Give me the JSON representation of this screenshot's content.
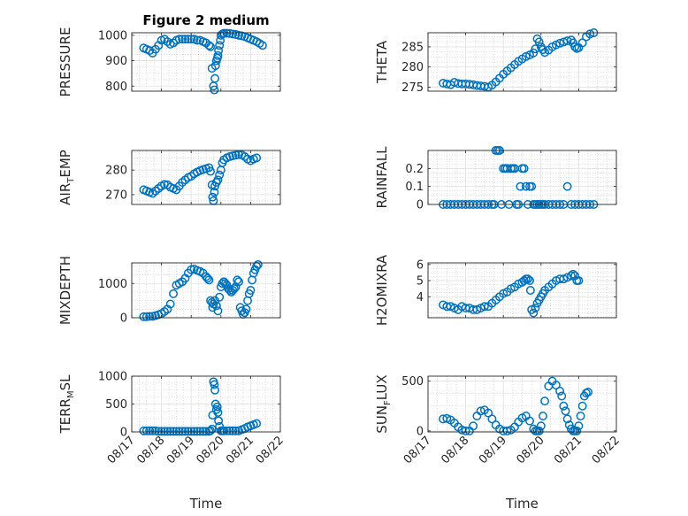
{
  "figure_title": "Figure 2 medium",
  "colors": {
    "marker": "#0072BD",
    "axis": "#262626",
    "grid": "#c8c8c8",
    "background": "#ffffff"
  },
  "chart_data": [
    {
      "type": "scatter",
      "id": "pressure",
      "title": "Figure 2 medium",
      "ylabel": {
        "main": "PRESSURE"
      },
      "ylim": [
        780,
        1010
      ],
      "yticks": [
        800,
        900,
        1000
      ],
      "xlim": [
        17,
        22
      ],
      "xticks": [
        17,
        18,
        19,
        20,
        21,
        22
      ],
      "show_x_tick_labels": false,
      "grid": true,
      "x": [
        17.4,
        17.5,
        17.6,
        17.7,
        17.8,
        17.9,
        18.0,
        18.1,
        18.2,
        18.3,
        18.4,
        18.5,
        18.6,
        18.7,
        18.8,
        18.9,
        19.0,
        19.1,
        19.2,
        19.3,
        19.4,
        19.5,
        19.6,
        19.65,
        19.7,
        19.75,
        19.78,
        19.8,
        19.82,
        19.85,
        19.88,
        19.9,
        19.92,
        19.95,
        19.98,
        20.0,
        20.05,
        20.1,
        20.2,
        20.3,
        20.4,
        20.5,
        20.6,
        20.7,
        20.8,
        20.9,
        21.0,
        21.1,
        21.2,
        21.3,
        21.4
      ],
      "y": [
        950,
        945,
        940,
        930,
        945,
        960,
        980,
        985,
        975,
        965,
        970,
        980,
        985,
        985,
        985,
        985,
        985,
        985,
        980,
        980,
        975,
        970,
        960,
        955,
        870,
        800,
        785,
        830,
        880,
        900,
        910,
        920,
        940,
        960,
        980,
        1000,
        1005,
        1008,
        1008,
        1007,
        1005,
        1003,
        1000,
        998,
        995,
        990,
        985,
        980,
        975,
        968,
        960
      ]
    },
    {
      "type": "scatter",
      "id": "theta",
      "ylabel": {
        "main": "THETA"
      },
      "ylim": [
        274,
        288.5
      ],
      "yticks": [
        275,
        280,
        285
      ],
      "xlim": [
        17,
        22
      ],
      "xticks": [
        17,
        18,
        19,
        20,
        21,
        22
      ],
      "show_x_tick_labels": false,
      "grid": true,
      "x": [
        17.4,
        17.5,
        17.6,
        17.7,
        17.8,
        17.9,
        18.0,
        18.1,
        18.2,
        18.3,
        18.4,
        18.5,
        18.6,
        18.7,
        18.8,
        18.9,
        19.0,
        19.1,
        19.2,
        19.3,
        19.4,
        19.5,
        19.6,
        19.7,
        19.8,
        19.85,
        19.9,
        19.95,
        20.0,
        20.05,
        20.1,
        20.2,
        20.3,
        20.4,
        20.5,
        20.6,
        20.7,
        20.8,
        20.85,
        20.9,
        20.95,
        21.0,
        21.1,
        21.2,
        21.3,
        21.4
      ],
      "y": [
        276,
        275.8,
        275.6,
        276.2,
        275.9,
        275.8,
        275.8,
        275.7,
        275.6,
        275.4,
        275.3,
        275.2,
        275.0,
        275.5,
        276.3,
        277.2,
        278.2,
        279.0,
        279.8,
        280.6,
        281.4,
        282.0,
        282.6,
        283.0,
        283.5,
        284.5,
        287.0,
        286.2,
        285.0,
        284.3,
        283.6,
        284.2,
        285.0,
        285.5,
        285.9,
        286.2,
        286.5,
        286.7,
        286.0,
        285.0,
        284.6,
        284.8,
        286.0,
        287.5,
        288.2,
        288.5
      ]
    },
    {
      "type": "scatter",
      "id": "air_temp",
      "ylabel": {
        "main": "AIR",
        "sub": "T",
        "rest": "EMP"
      },
      "ylim": [
        266,
        288
      ],
      "yticks": [
        270,
        280
      ],
      "xlim": [
        17,
        22
      ],
      "xticks": [
        17,
        18,
        19,
        20,
        21,
        22
      ],
      "show_x_tick_labels": false,
      "grid": true,
      "x": [
        17.4,
        17.5,
        17.6,
        17.7,
        17.8,
        17.9,
        18.0,
        18.1,
        18.2,
        18.3,
        18.4,
        18.5,
        18.6,
        18.7,
        18.8,
        18.9,
        19.0,
        19.1,
        19.2,
        19.3,
        19.4,
        19.5,
        19.6,
        19.65,
        19.7,
        19.72,
        19.75,
        19.78,
        19.8,
        19.85,
        19.9,
        19.95,
        20.0,
        20.05,
        20.1,
        20.2,
        20.3,
        20.4,
        20.5,
        20.6,
        20.7,
        20.8,
        20.9,
        21.0,
        21.1,
        21.2
      ],
      "y": [
        272,
        271.5,
        271,
        270.5,
        271.5,
        272.5,
        273.5,
        274.2,
        274,
        273,
        272.5,
        272,
        273.5,
        275,
        276,
        277,
        277.5,
        278.5,
        279.2,
        279.8,
        280.2,
        280.6,
        281,
        279.5,
        274,
        269,
        267.5,
        271,
        273.5,
        275,
        276,
        278,
        280,
        283,
        284.2,
        285,
        285.5,
        285.8,
        286.1,
        286.3,
        286.2,
        285.5,
        284.5,
        283.8,
        284.5,
        285.0
      ]
    },
    {
      "type": "scatter",
      "id": "rainfall",
      "ylabel": {
        "main": "RAINFALL"
      },
      "ylim": [
        0,
        0.3
      ],
      "yticks": [
        0,
        0.1,
        0.2
      ],
      "xlim": [
        17,
        22
      ],
      "xticks": [
        17,
        18,
        19,
        20,
        21,
        22
      ],
      "show_x_tick_labels": false,
      "grid": true,
      "x": [
        17.4,
        17.5,
        17.6,
        17.7,
        17.8,
        17.9,
        18.0,
        18.1,
        18.2,
        18.3,
        18.4,
        18.5,
        18.6,
        18.7,
        18.75,
        18.8,
        18.85,
        18.9,
        18.95,
        19.0,
        19.05,
        19.1,
        19.15,
        19.2,
        19.25,
        19.3,
        19.35,
        19.4,
        19.45,
        19.5,
        19.55,
        19.6,
        19.65,
        19.7,
        19.75,
        19.8,
        19.85,
        19.9,
        19.95,
        20.0,
        20.05,
        20.1,
        20.2,
        20.3,
        20.4,
        20.5,
        20.6,
        20.7,
        20.8,
        20.9,
        21.0,
        21.1,
        21.2,
        21.3,
        21.4
      ],
      "y": [
        0,
        0,
        0,
        0,
        0,
        0,
        0,
        0,
        0,
        0,
        0,
        0,
        0,
        0,
        0,
        0.3,
        0.3,
        0.3,
        0,
        0.2,
        0.2,
        0.2,
        0,
        0.2,
        0.2,
        0.2,
        0,
        0,
        0.1,
        0.2,
        0.2,
        0.1,
        0,
        0.1,
        0.1,
        0,
        0,
        0,
        0,
        0,
        0,
        0,
        0,
        0,
        0,
        0,
        0,
        0.1,
        0,
        0,
        0,
        0,
        0,
        0,
        0
      ]
    },
    {
      "type": "scatter",
      "id": "mixdepth",
      "ylabel": {
        "main": "MIXDEPTH"
      },
      "ylim": [
        0,
        1600
      ],
      "yticks": [
        0,
        1000
      ],
      "xlim": [
        17,
        22
      ],
      "xticks": [
        17,
        18,
        19,
        20,
        21,
        22
      ],
      "show_x_tick_labels": false,
      "grid": true,
      "x": [
        17.4,
        17.5,
        17.6,
        17.7,
        17.8,
        17.9,
        18.0,
        18.1,
        18.2,
        18.3,
        18.4,
        18.5,
        18.6,
        18.7,
        18.8,
        18.9,
        19.0,
        19.1,
        19.2,
        19.3,
        19.4,
        19.5,
        19.55,
        19.6,
        19.65,
        19.7,
        19.72,
        19.75,
        19.8,
        19.85,
        19.9,
        19.95,
        20.0,
        20.05,
        20.1,
        20.15,
        20.2,
        20.25,
        20.3,
        20.35,
        20.4,
        20.45,
        20.5,
        20.55,
        20.6,
        20.65,
        20.7,
        20.75,
        20.8,
        20.85,
        20.9,
        20.95,
        21.0,
        21.05,
        21.1,
        21.15,
        21.2,
        21.25
      ],
      "y": [
        30,
        30,
        40,
        40,
        60,
        90,
        120,
        180,
        250,
        400,
        700,
        950,
        1000,
        1050,
        1150,
        1300,
        1400,
        1420,
        1380,
        1350,
        1300,
        1200,
        1150,
        1100,
        500,
        450,
        300,
        400,
        500,
        350,
        200,
        600,
        900,
        1000,
        1050,
        1000,
        950,
        850,
        800,
        750,
        800,
        850,
        900,
        1100,
        1050,
        300,
        200,
        100,
        150,
        250,
        500,
        700,
        800,
        1100,
        1300,
        1400,
        1500,
        1550
      ]
    },
    {
      "type": "scatter",
      "id": "h2omixra",
      "ylabel": {
        "main": "H2OMIXRA"
      },
      "ylim": [
        2.7,
        6.1
      ],
      "yticks": [
        4,
        5,
        6
      ],
      "xlim": [
        17,
        22
      ],
      "xticks": [
        17,
        18,
        19,
        20,
        21,
        22
      ],
      "show_x_tick_labels": false,
      "grid": true,
      "x": [
        17.4,
        17.5,
        17.6,
        17.7,
        17.8,
        17.9,
        18.0,
        18.1,
        18.2,
        18.3,
        18.4,
        18.5,
        18.6,
        18.7,
        18.8,
        18.9,
        19.0,
        19.1,
        19.2,
        19.3,
        19.4,
        19.5,
        19.55,
        19.6,
        19.65,
        19.7,
        19.72,
        19.75,
        19.8,
        19.85,
        19.9,
        19.95,
        20.0,
        20.05,
        20.1,
        20.2,
        20.3,
        20.4,
        20.5,
        20.6,
        20.7,
        20.8,
        20.85,
        20.9,
        20.95,
        21.0
      ],
      "y": [
        3.5,
        3.4,
        3.4,
        3.3,
        3.2,
        3.4,
        3.3,
        3.3,
        3.2,
        3.2,
        3.3,
        3.4,
        3.4,
        3.6,
        3.8,
        4.0,
        4.2,
        4.3,
        4.5,
        4.6,
        4.8,
        4.9,
        5.0,
        5.1,
        5.1,
        5.0,
        4.4,
        3.2,
        3.0,
        3.3,
        3.6,
        3.8,
        4.0,
        4.2,
        4.4,
        4.6,
        4.8,
        5.0,
        5.1,
        5.1,
        5.2,
        5.3,
        5.4,
        5.3,
        5.0,
        5.0
      ]
    },
    {
      "type": "scatter",
      "id": "terr_msl",
      "ylabel": {
        "main": "TERR",
        "sub": "M",
        "rest": "SL"
      },
      "ylim": [
        0,
        1000
      ],
      "yticks": [
        0,
        500,
        1000
      ],
      "xlim": [
        17,
        22
      ],
      "xticks": [
        17,
        18,
        19,
        20,
        21,
        22
      ],
      "xticklabels": [
        "08/17",
        "08/18",
        "08/19",
        "08/20",
        "08/21",
        "08/22"
      ],
      "xlabel": "Time",
      "grid": true,
      "x": [
        17.4,
        17.5,
        17.6,
        17.7,
        17.8,
        17.9,
        18.0,
        18.1,
        18.2,
        18.3,
        18.4,
        18.5,
        18.6,
        18.7,
        18.8,
        18.9,
        19.0,
        19.1,
        19.2,
        19.3,
        19.4,
        19.5,
        19.6,
        19.65,
        19.7,
        19.72,
        19.75,
        19.78,
        19.8,
        19.82,
        19.85,
        19.88,
        19.9,
        19.92,
        19.95,
        20.0,
        20.05,
        20.1,
        20.2,
        20.3,
        20.4,
        20.5,
        20.6,
        20.7,
        20.8,
        20.9,
        21.0,
        21.1,
        21.2
      ],
      "y": [
        20,
        20,
        20,
        20,
        20,
        10,
        10,
        10,
        10,
        10,
        10,
        10,
        10,
        10,
        10,
        10,
        10,
        10,
        10,
        10,
        10,
        10,
        10,
        20,
        50,
        300,
        900,
        850,
        750,
        500,
        400,
        450,
        350,
        200,
        100,
        20,
        20,
        20,
        20,
        20,
        20,
        20,
        20,
        40,
        60,
        90,
        110,
        130,
        150
      ]
    },
    {
      "type": "scatter",
      "id": "sun_flux",
      "ylabel": {
        "main": "SUN",
        "sub": "F",
        "rest": "LUX"
      },
      "ylim": [
        -10,
        550
      ],
      "yticks": [
        0,
        500
      ],
      "xlim": [
        17,
        22
      ],
      "xticks": [
        17,
        18,
        19,
        20,
        21,
        22
      ],
      "xticklabels": [
        "08/17",
        "08/18",
        "08/19",
        "08/20",
        "08/21",
        "08/22"
      ],
      "xlabel": "Time",
      "grid": true,
      "x": [
        17.4,
        17.5,
        17.6,
        17.7,
        17.8,
        17.9,
        18.0,
        18.1,
        18.2,
        18.3,
        18.4,
        18.5,
        18.6,
        18.7,
        18.8,
        18.9,
        19.0,
        19.1,
        19.2,
        19.3,
        19.4,
        19.5,
        19.6,
        19.7,
        19.8,
        19.85,
        19.9,
        19.95,
        20.0,
        20.05,
        20.1,
        20.2,
        20.3,
        20.4,
        20.5,
        20.55,
        20.6,
        20.65,
        20.7,
        20.75,
        20.8,
        20.85,
        20.9,
        20.95,
        21.0,
        21.05,
        21.1,
        21.15,
        21.2,
        21.25
      ],
      "y": [
        120,
        125,
        110,
        80,
        40,
        10,
        0,
        0,
        50,
        150,
        200,
        210,
        180,
        120,
        60,
        20,
        0,
        0,
        10,
        40,
        90,
        130,
        150,
        100,
        20,
        0,
        0,
        0,
        50,
        150,
        300,
        450,
        500,
        460,
        400,
        350,
        250,
        200,
        120,
        60,
        20,
        0,
        0,
        0,
        50,
        150,
        250,
        350,
        380,
        390
      ]
    }
  ]
}
